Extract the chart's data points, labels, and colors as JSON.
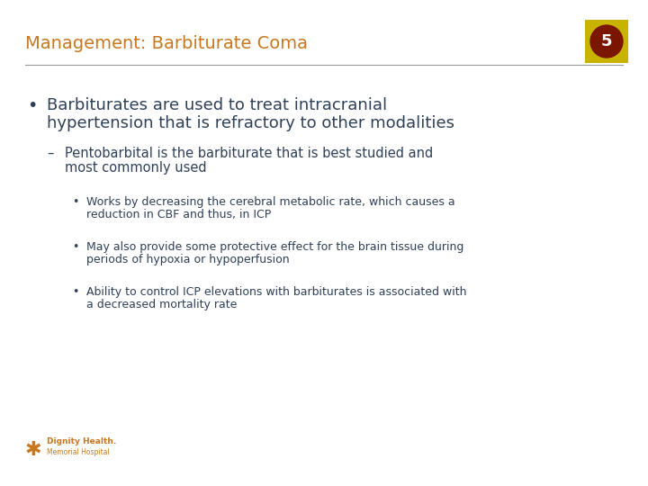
{
  "title": "Management: Barbiturate Coma",
  "title_color": "#C87820",
  "title_fontsize": 14,
  "slide_number": "5",
  "background_color": "#FFFFFF",
  "separator_color": "#999999",
  "bullet1_line1": "Barbiturates are used to treat intracranial",
  "bullet1_line2": "hypertension that is refractory to other modalities",
  "bullet1_fontsize": 13,
  "sub_bullet1_line1": "Pentobarbital is the barbiturate that is best studied and",
  "sub_bullet1_line2": "most commonly used",
  "sub_bullet1_fontsize": 10.5,
  "sub_sub_bullet1_line1": "Works by decreasing the cerebral metabolic rate, which causes a",
  "sub_sub_bullet1_line2": "reduction in CBF and thus, in ICP",
  "sub_sub_bullet2_line1": "May also provide some protective effect for the brain tissue during",
  "sub_sub_bullet2_line2": "periods of hypoxia or hypoperfusion",
  "sub_sub_bullet3_line1": "Ability to control ICP elevations with barbiturates is associated with",
  "sub_sub_bullet3_line2": "a decreased mortality rate",
  "sub_sub_fontsize": 9,
  "bullet_color": "#2E4057",
  "sub_color": "#2E4057",
  "sub_sub_color": "#2E4057",
  "badge_bg": "#C8B400",
  "badge_circle": "#7A1500",
  "badge_text_color": "#FFFFFF",
  "footer_color": "#C87820",
  "footer_logo_color": "#C87820"
}
